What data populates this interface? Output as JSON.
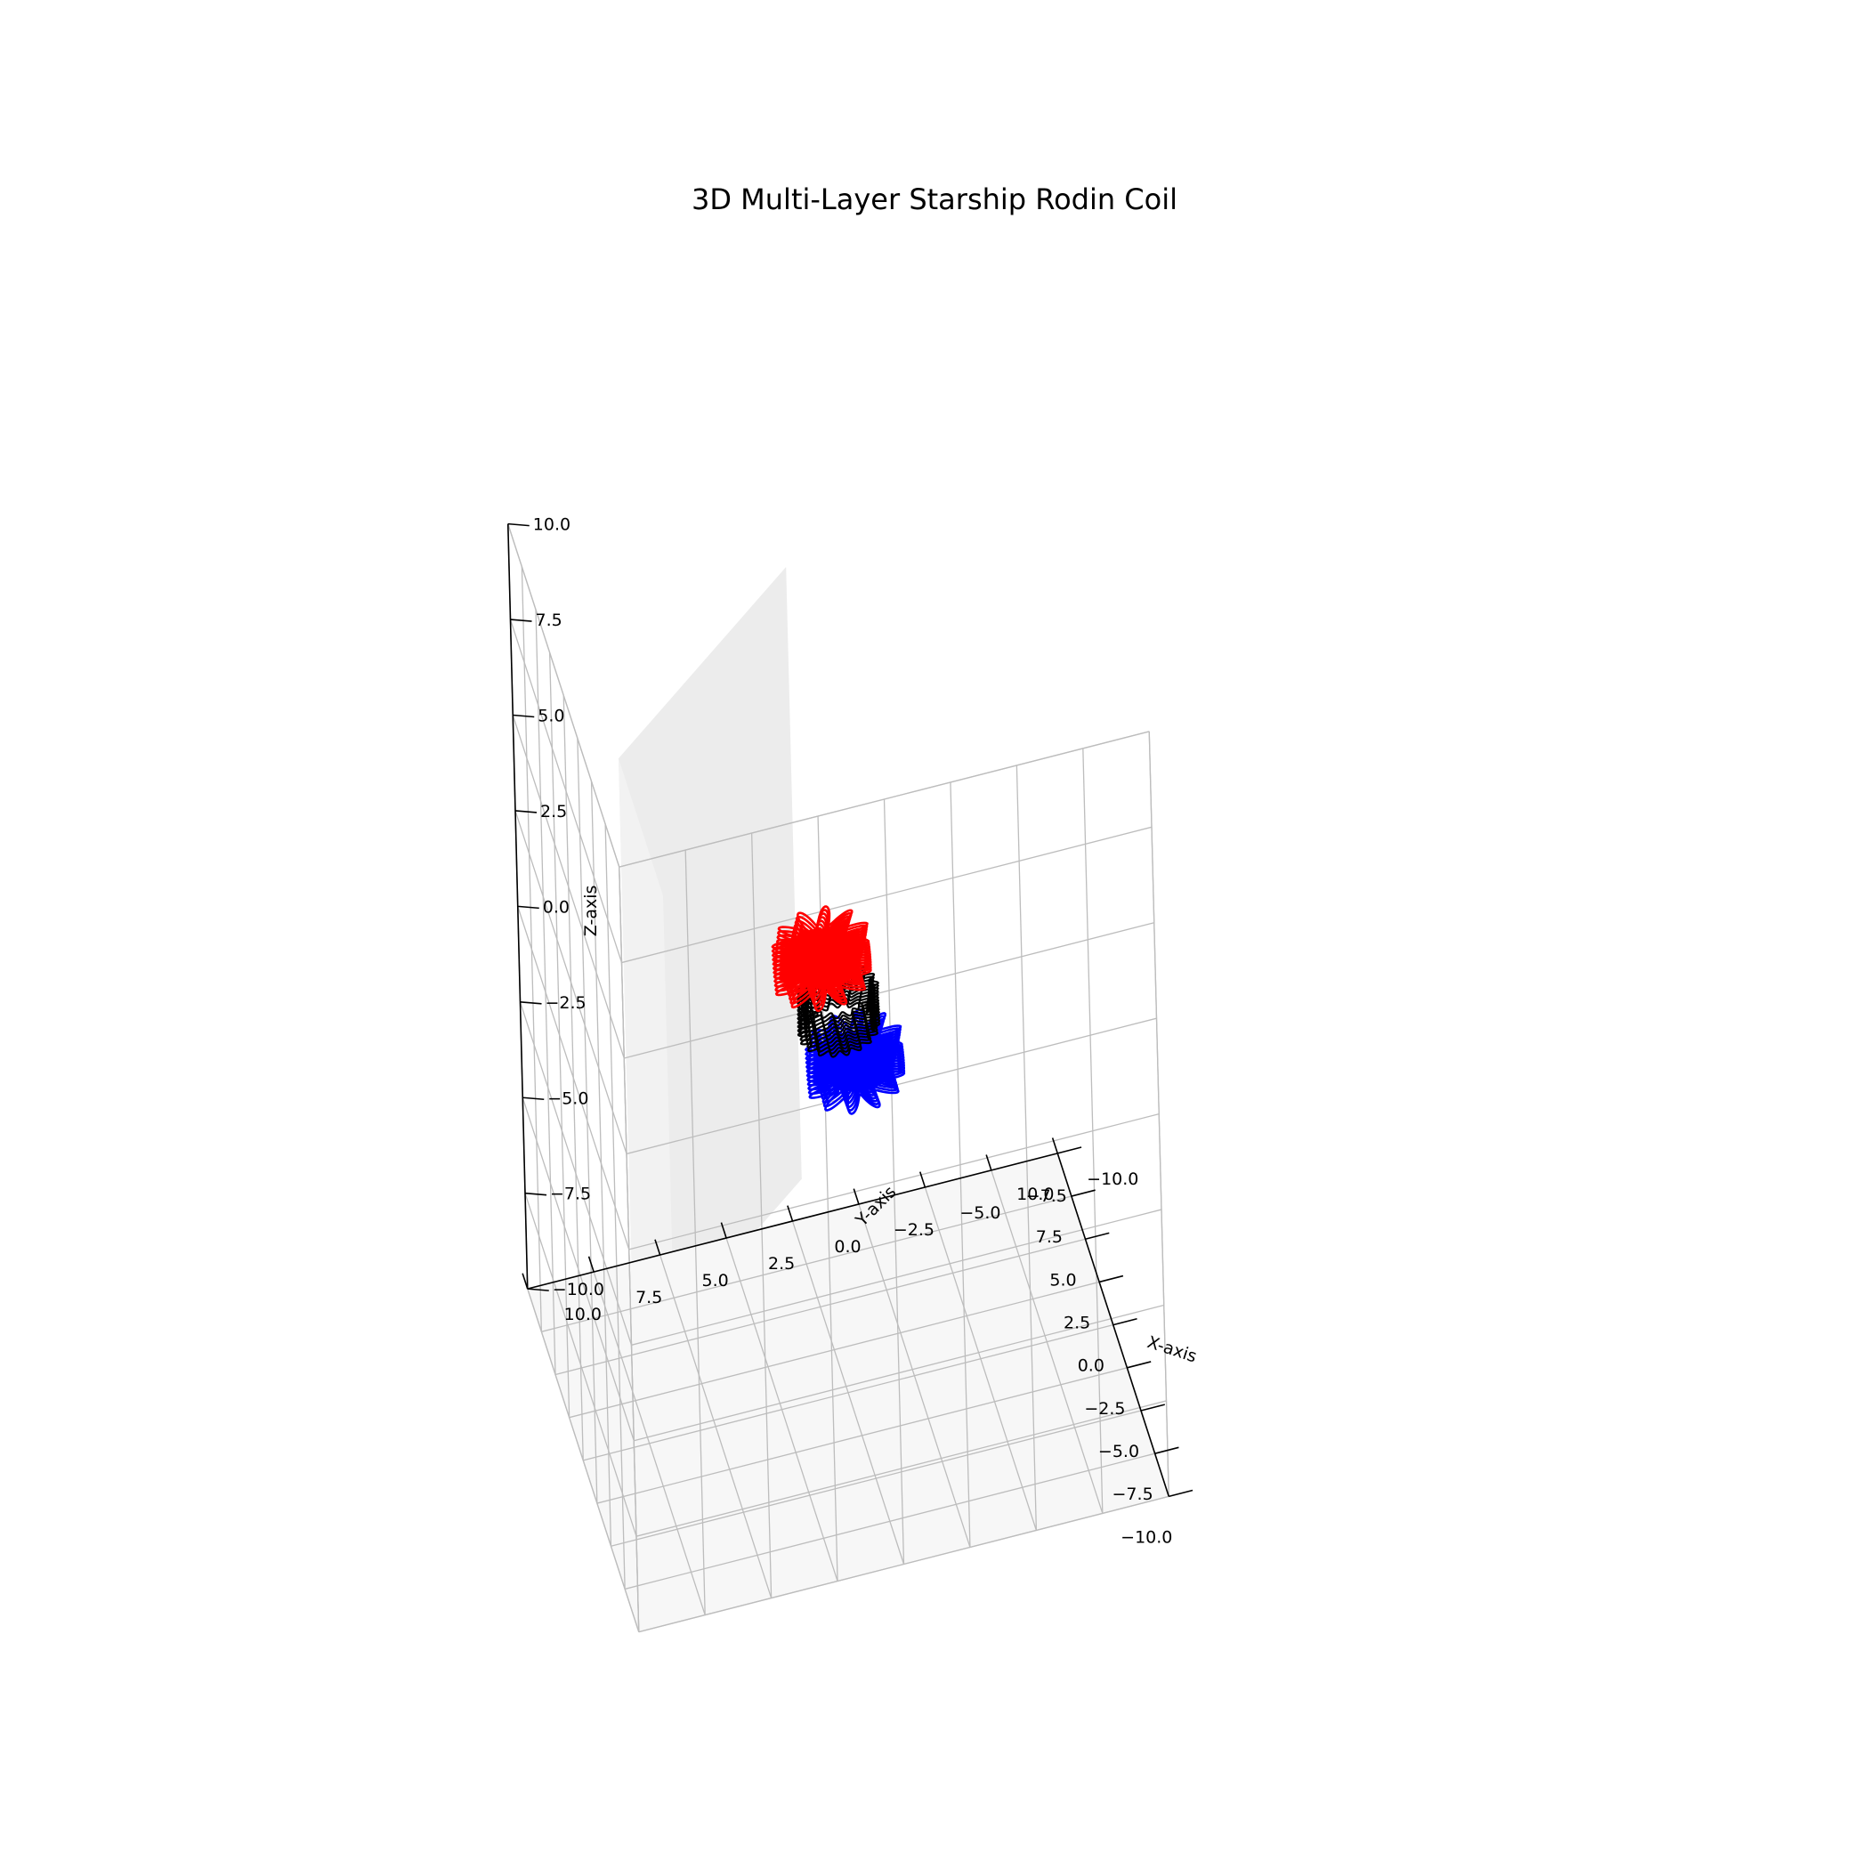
{
  "chart_data": {
    "type": "3d-line",
    "title": "3D Multi-Layer Starship Rodin Coil",
    "xlabel": "X-axis",
    "ylabel": "Y-axis",
    "zlabel": "Z-axis",
    "xlim": [
      -10,
      10
    ],
    "ylim": [
      -10,
      10
    ],
    "zlim": [
      -10,
      10
    ],
    "ticks": [
      "−10.0",
      "−7.5",
      "−5.0",
      "−2.5",
      "0.0",
      "2.5",
      "5.0",
      "7.5",
      "10.0"
    ],
    "grid": true,
    "series": [
      {
        "color": "#0000ff",
        "shape": "multi-layer star coil",
        "center": [
          -3,
          0,
          0
        ]
      },
      {
        "color": "#000000",
        "shape": "multi-layer ring coil",
        "center": [
          0,
          0,
          0
        ]
      },
      {
        "color": "#ff0000",
        "shape": "multi-layer star coil",
        "center": [
          3,
          0,
          0
        ]
      }
    ]
  }
}
